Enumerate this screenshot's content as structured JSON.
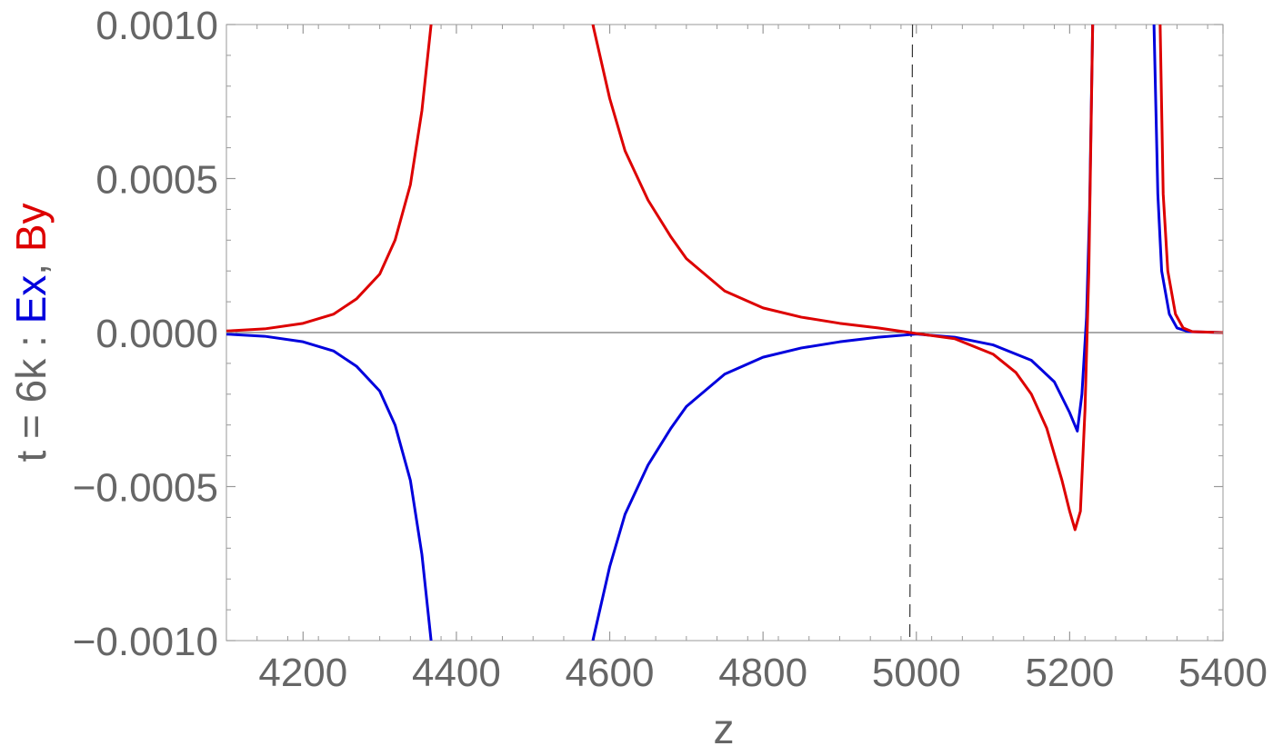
{
  "chart_data": {
    "type": "line",
    "xlabel": "z",
    "ylabel_parts": [
      {
        "text": "t = 6k : ",
        "color": "#666666"
      },
      {
        "text": "Ex",
        "color": "#0000dd"
      },
      {
        "text": ", ",
        "color": "#666666"
      },
      {
        "text": "By",
        "color": "#dd0000"
      }
    ],
    "xlim": [
      4100,
      5400
    ],
    "ylim": [
      -0.001,
      0.001
    ],
    "x_ticks": [
      4200,
      4400,
      4600,
      4800,
      5000,
      5200,
      5400
    ],
    "x_tick_labels": [
      "4200",
      "4400",
      "4600",
      "4800",
      "5000",
      "5200",
      "5400"
    ],
    "y_ticks": [
      -0.001,
      -0.0005,
      0,
      0.0005,
      0.001
    ],
    "y_tick_labels": [
      "−0.0010",
      "−0.0005",
      "0.0000",
      "0.0005",
      "0.0010"
    ],
    "grid": false,
    "reference_line": {
      "x": 4995,
      "style": "dashed",
      "color": "#333333"
    },
    "series": [
      {
        "key": "Ex",
        "color": "#0000dd",
        "segments": [
          [
            [
              4100,
              -5e-06
            ],
            [
              4150,
              -1.2e-05
            ],
            [
              4200,
              -3e-05
            ],
            [
              4240,
              -6e-05
            ],
            [
              4270,
              -0.00011
            ],
            [
              4300,
              -0.00019
            ],
            [
              4320,
              -0.0003
            ],
            [
              4340,
              -0.00048
            ],
            [
              4355,
              -0.00072
            ],
            [
              4367,
              -0.001
            ]
          ],
          [
            [
              4578,
              -0.001
            ],
            [
              4600,
              -0.00076
            ],
            [
              4620,
              -0.00059
            ],
            [
              4650,
              -0.00043
            ],
            [
              4680,
              -0.00031
            ],
            [
              4700,
              -0.00024
            ],
            [
              4750,
              -0.000135
            ],
            [
              4800,
              -8e-05
            ],
            [
              4850,
              -5e-05
            ],
            [
              4900,
              -3e-05
            ],
            [
              4950,
              -1.5e-05
            ],
            [
              5000,
              -5e-06
            ],
            [
              5050,
              -1.5e-05
            ],
            [
              5100,
              -4e-05
            ],
            [
              5150,
              -9e-05
            ],
            [
              5180,
              -0.00016
            ],
            [
              5200,
              -0.00026
            ],
            [
              5210,
              -0.00032
            ],
            [
              5216,
              -0.0002
            ],
            [
              5222,
              5e-05
            ],
            [
              5226,
              0.0004
            ],
            [
              5230,
              0.001
            ]
          ],
          [
            [
              5310,
              0.001
            ],
            [
              5315,
              0.00045
            ],
            [
              5320,
              0.0002
            ],
            [
              5330,
              6e-05
            ],
            [
              5340,
              1.5e-05
            ],
            [
              5355,
              3e-06
            ],
            [
              5400,
              0.0
            ]
          ]
        ]
      },
      {
        "key": "By",
        "color": "#dd0000",
        "segments": [
          [
            [
              4100,
              5e-06
            ],
            [
              4150,
              1.2e-05
            ],
            [
              4200,
              3e-05
            ],
            [
              4240,
              6e-05
            ],
            [
              4270,
              0.00011
            ],
            [
              4300,
              0.00019
            ],
            [
              4320,
              0.0003
            ],
            [
              4340,
              0.00048
            ],
            [
              4355,
              0.00072
            ],
            [
              4367,
              0.001
            ]
          ],
          [
            [
              4578,
              0.001
            ],
            [
              4600,
              0.00076
            ],
            [
              4620,
              0.00059
            ],
            [
              4650,
              0.00043
            ],
            [
              4680,
              0.00031
            ],
            [
              4700,
              0.00024
            ],
            [
              4750,
              0.000135
            ],
            [
              4800,
              8e-05
            ],
            [
              4850,
              5e-05
            ],
            [
              4900,
              3e-05
            ],
            [
              4950,
              1.5e-05
            ],
            [
              5000,
              -3e-06
            ],
            [
              5050,
              -2e-05
            ],
            [
              5100,
              -7e-05
            ],
            [
              5130,
              -0.00013
            ],
            [
              5150,
              -0.0002
            ],
            [
              5170,
              -0.00031
            ],
            [
              5190,
              -0.00048
            ],
            [
              5200,
              -0.00058
            ],
            [
              5207,
              -0.00064
            ],
            [
              5214,
              -0.00058
            ],
            [
              5220,
              -0.00025
            ],
            [
              5225,
              0.0002
            ],
            [
              5230,
              0.001
            ]
          ],
          [
            [
              5318,
              0.001
            ],
            [
              5322,
              0.00045
            ],
            [
              5328,
              0.0002
            ],
            [
              5338,
              6e-05
            ],
            [
              5348,
              1.5e-05
            ],
            [
              5360,
              3e-06
            ],
            [
              5400,
              0.0
            ]
          ]
        ]
      }
    ]
  }
}
